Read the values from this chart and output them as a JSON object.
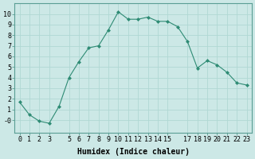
{
  "x": [
    0,
    1,
    2,
    3,
    4,
    5,
    6,
    7,
    8,
    9,
    10,
    11,
    12,
    13,
    14,
    15,
    16,
    17,
    18,
    19,
    20,
    21,
    22,
    23
  ],
  "y": [
    1.7,
    0.5,
    -0.1,
    -0.3,
    1.3,
    4.0,
    5.5,
    6.8,
    7.0,
    8.5,
    10.2,
    9.5,
    9.5,
    9.7,
    9.3,
    9.3,
    8.8,
    7.4,
    4.9,
    5.6,
    5.2,
    4.5,
    3.5,
    3.3
  ],
  "title": "",
  "xlabel": "Humidex (Indice chaleur)",
  "ylabel": "",
  "xlim": [
    -0.5,
    23.5
  ],
  "ylim": [
    -1.2,
    11.0
  ],
  "xticks": [
    0,
    1,
    2,
    3,
    5,
    6,
    7,
    8,
    9,
    10,
    11,
    12,
    13,
    14,
    15,
    17,
    18,
    19,
    20,
    21,
    22,
    23
  ],
  "yticks": [
    0,
    1,
    2,
    3,
    4,
    5,
    6,
    7,
    8,
    9,
    10
  ],
  "ytick_labels": [
    "-0",
    "1",
    "2",
    "3",
    "4",
    "5",
    "6",
    "7",
    "8",
    "9",
    "10"
  ],
  "line_color": "#2e8b74",
  "marker": "D",
  "marker_size": 2,
  "bg_color": "#cce8e6",
  "grid_color": "#b0d8d4",
  "label_fontsize": 7,
  "tick_fontsize": 6
}
